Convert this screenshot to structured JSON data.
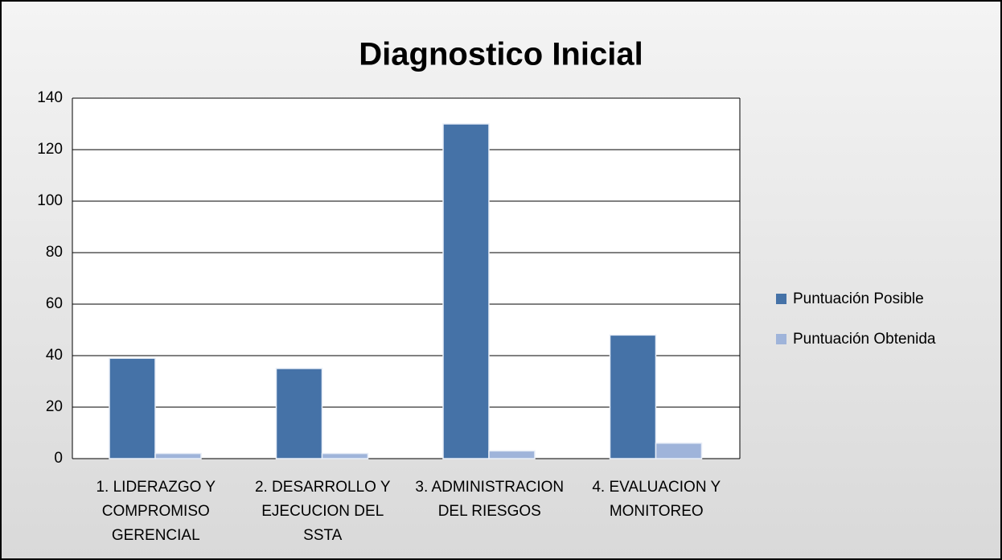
{
  "chart_data": {
    "type": "bar",
    "title": "Diagnostico Inicial",
    "categories": [
      "1. LIDERAZGO Y COMPROMISO GERENCIAL",
      "2. DESARROLLO Y EJECUCION DEL SSTA",
      "3. ADMINISTRACION DEL RIESGOS",
      "4. EVALUACION Y MONITOREO"
    ],
    "series": [
      {
        "name": "Puntuación Posible",
        "color": "#4572a7",
        "values": [
          39,
          35,
          130,
          48
        ]
      },
      {
        "name": "Puntuación Obtenida",
        "color": "#9fb4da",
        "values": [
          2,
          2,
          3,
          6
        ]
      }
    ],
    "ylim": [
      0,
      140
    ],
    "yticks": [
      0,
      20,
      40,
      60,
      80,
      100,
      120,
      140
    ],
    "grid": true,
    "legend": "right"
  }
}
